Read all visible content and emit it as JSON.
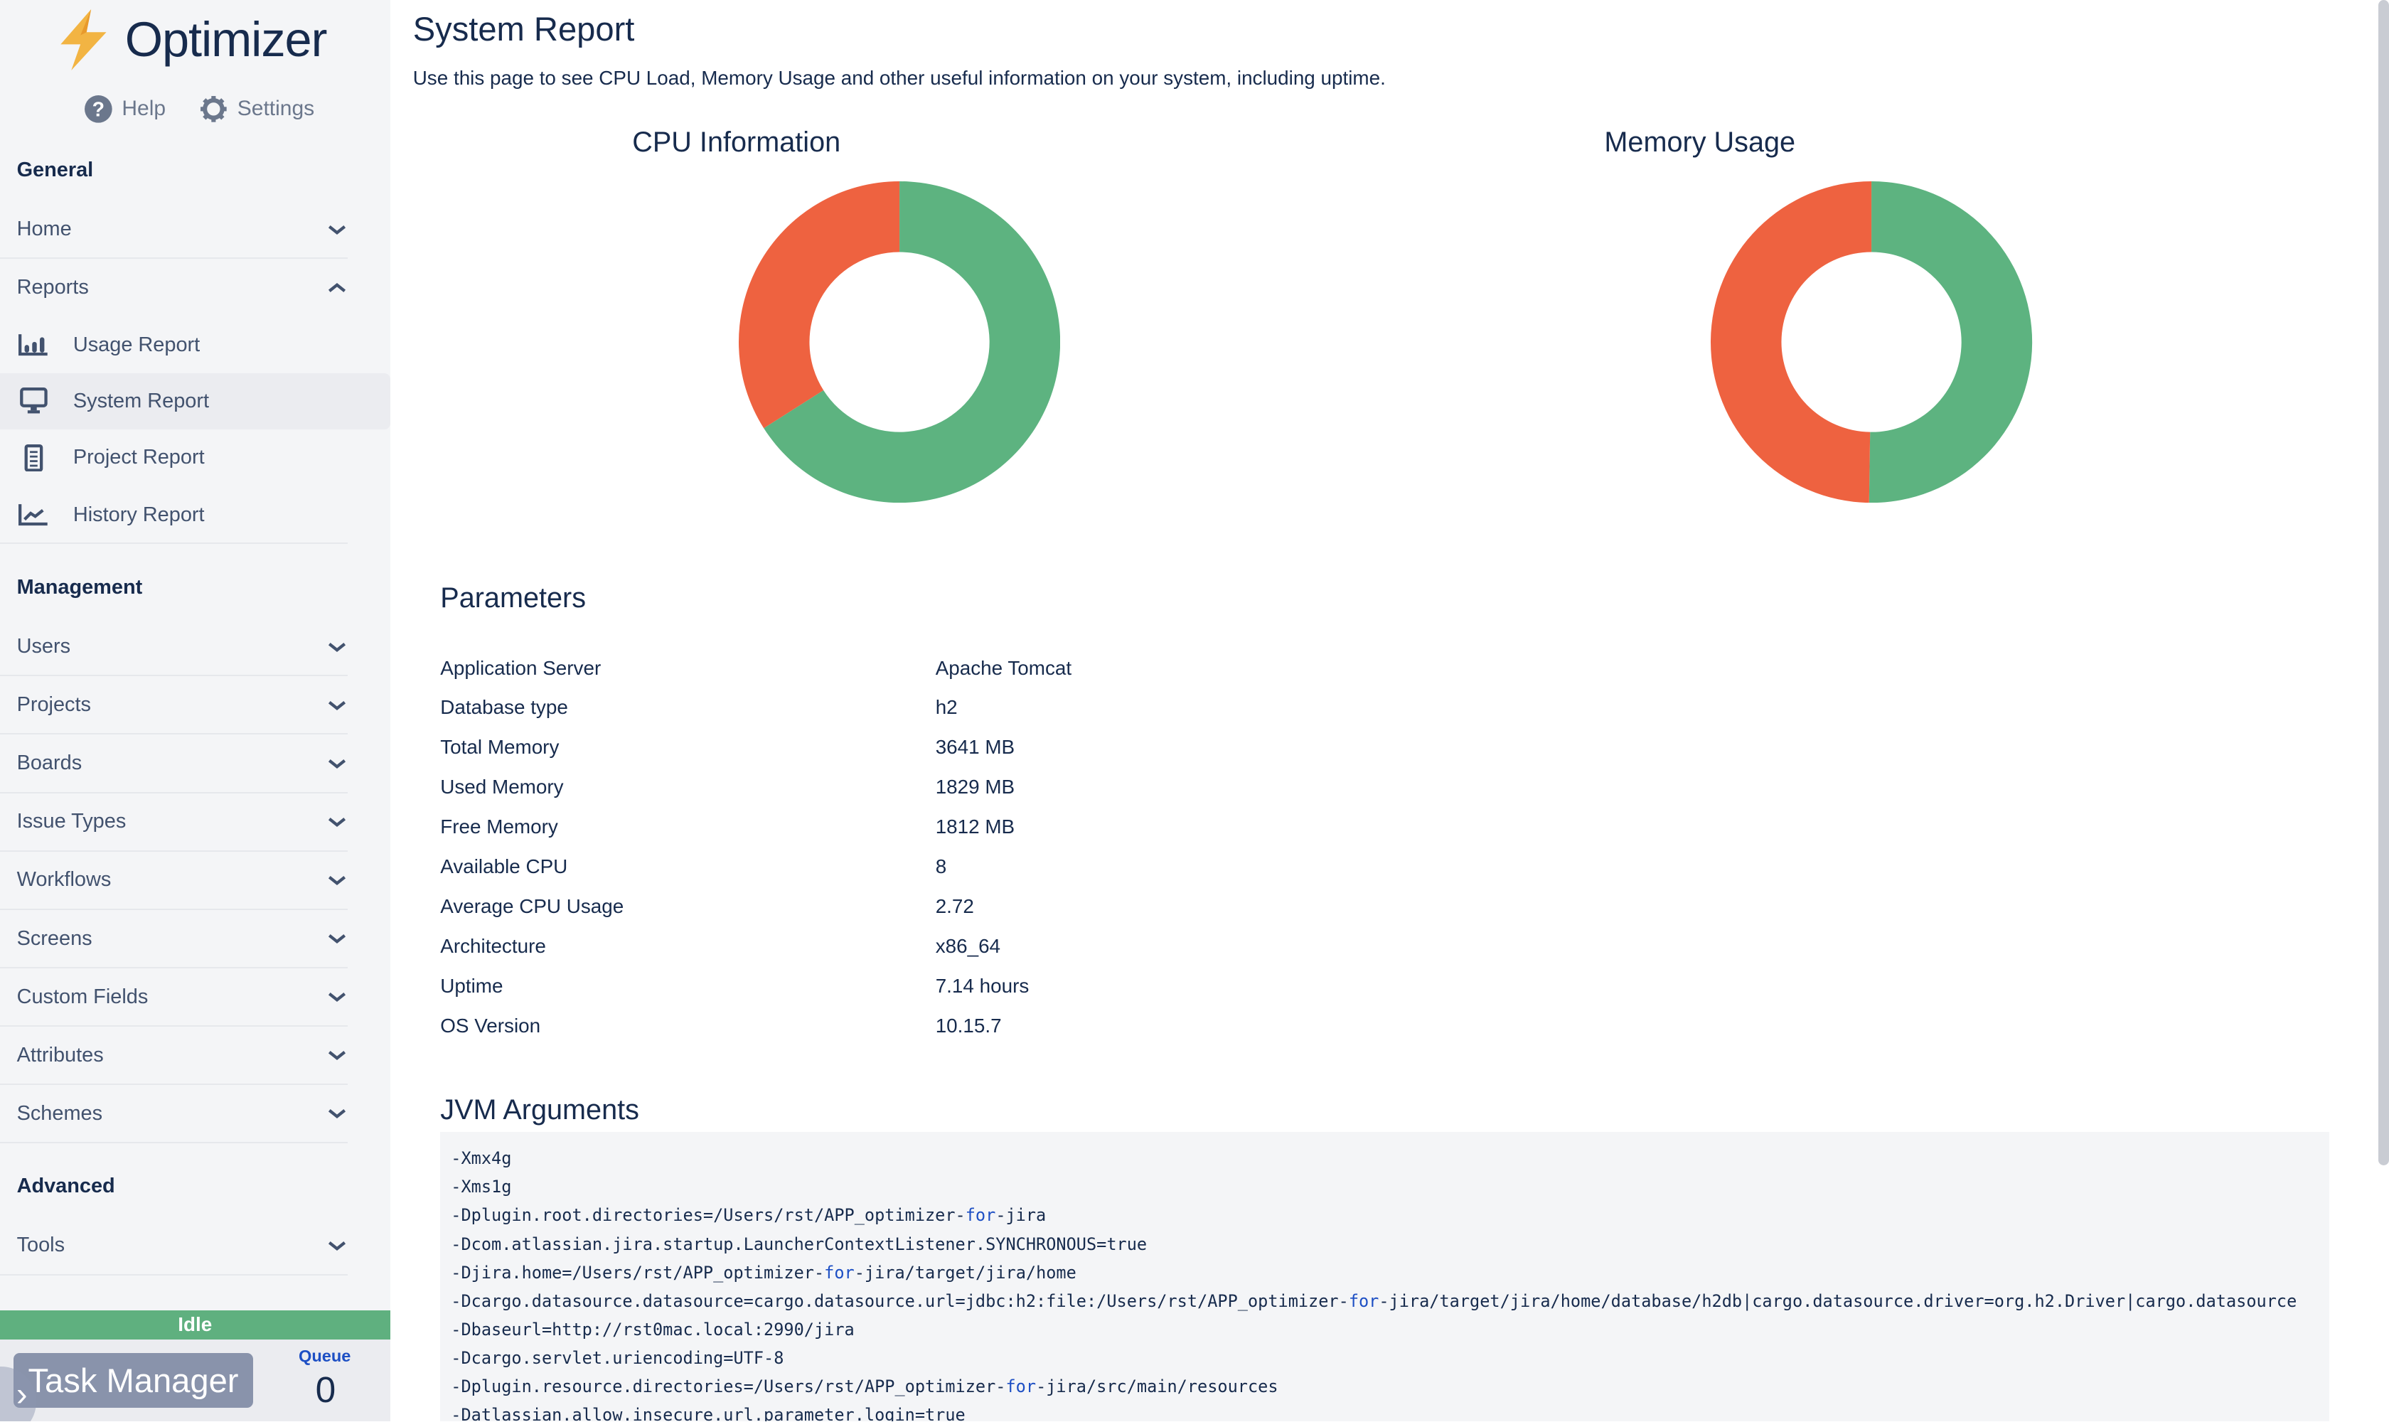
{
  "app": {
    "name": "Optimizer",
    "help": "Help",
    "settings": "Settings"
  },
  "sidebar": {
    "general": "General",
    "home": "Home",
    "reports": "Reports",
    "report_items": [
      {
        "label": "Usage Report",
        "icon": "bar-chart-icon"
      },
      {
        "label": "System Report",
        "icon": "monitor-icon",
        "active": true
      },
      {
        "label": "Project Report",
        "icon": "document-icon"
      },
      {
        "label": "History Report",
        "icon": "line-chart-icon"
      }
    ],
    "management": "Management",
    "management_items": [
      "Users",
      "Projects",
      "Boards",
      "Issue Types",
      "Workflows",
      "Screens",
      "Custom Fields",
      "Attributes",
      "Schemes"
    ],
    "advanced": "Advanced",
    "tools": "Tools"
  },
  "task": {
    "status": "Idle",
    "button": "Task Manager",
    "queue_label": "Queue",
    "queue_count": "0",
    "status_color": "#5fb07f"
  },
  "page": {
    "title": "System Report",
    "description": "Use this page to see CPU Load, Memory Usage and other useful information on your system, including uptime."
  },
  "chart_data": [
    {
      "type": "pie",
      "title": "CPU Information",
      "slices": [
        {
          "value": 66,
          "color": "#5db380"
        },
        {
          "value": 34,
          "color": "#ee6240"
        }
      ]
    },
    {
      "type": "pie",
      "title": "Memory Usage",
      "slices": [
        {
          "value": 1829,
          "color": "#5db380"
        },
        {
          "value": 1812,
          "color": "#ee6240"
        }
      ]
    }
  ],
  "parameters": {
    "title": "Parameters",
    "rows": [
      [
        "Application Server",
        "Apache Tomcat"
      ],
      [
        "Database type",
        "h2"
      ],
      [
        "Total Memory",
        "3641 MB"
      ],
      [
        "Used Memory",
        "1829 MB"
      ],
      [
        "Free Memory",
        "1812 MB"
      ],
      [
        "Available CPU",
        "8"
      ],
      [
        "Average CPU Usage",
        "2.72"
      ],
      [
        "Architecture",
        "x86_64"
      ],
      [
        "Uptime",
        "7.14 hours"
      ],
      [
        "OS Version",
        "10.15.7"
      ]
    ]
  },
  "jvm": {
    "title": "JVM Arguments",
    "lines": [
      "-Xmx4g",
      "-Xms1g",
      "-Dplugin.root.directories=/Users/rst/APP_optimizer-for-jira",
      "-Dcom.atlassian.jira.startup.LauncherContextListener.SYNCHRONOUS=true",
      "-Djira.home=/Users/rst/APP_optimizer-for-jira/target/jira/home",
      "-Dcargo.datasource.datasource=cargo.datasource.url=jdbc:h2:file:/Users/rst/APP_optimizer-for-jira/target/jira/home/database/h2db|cargo.datasource.driver=org.h2.Driver|cargo.datasource",
      "-Dbaseurl=http://rst0mac.local:2990/jira",
      "-Dcargo.servlet.uriencoding=UTF-8",
      "-Dplugin.resource.directories=/Users/rst/APP_optimizer-for-jira/src/main/resources",
      "-Datlassian.allow.insecure.url.parameter.login=true"
    ]
  }
}
